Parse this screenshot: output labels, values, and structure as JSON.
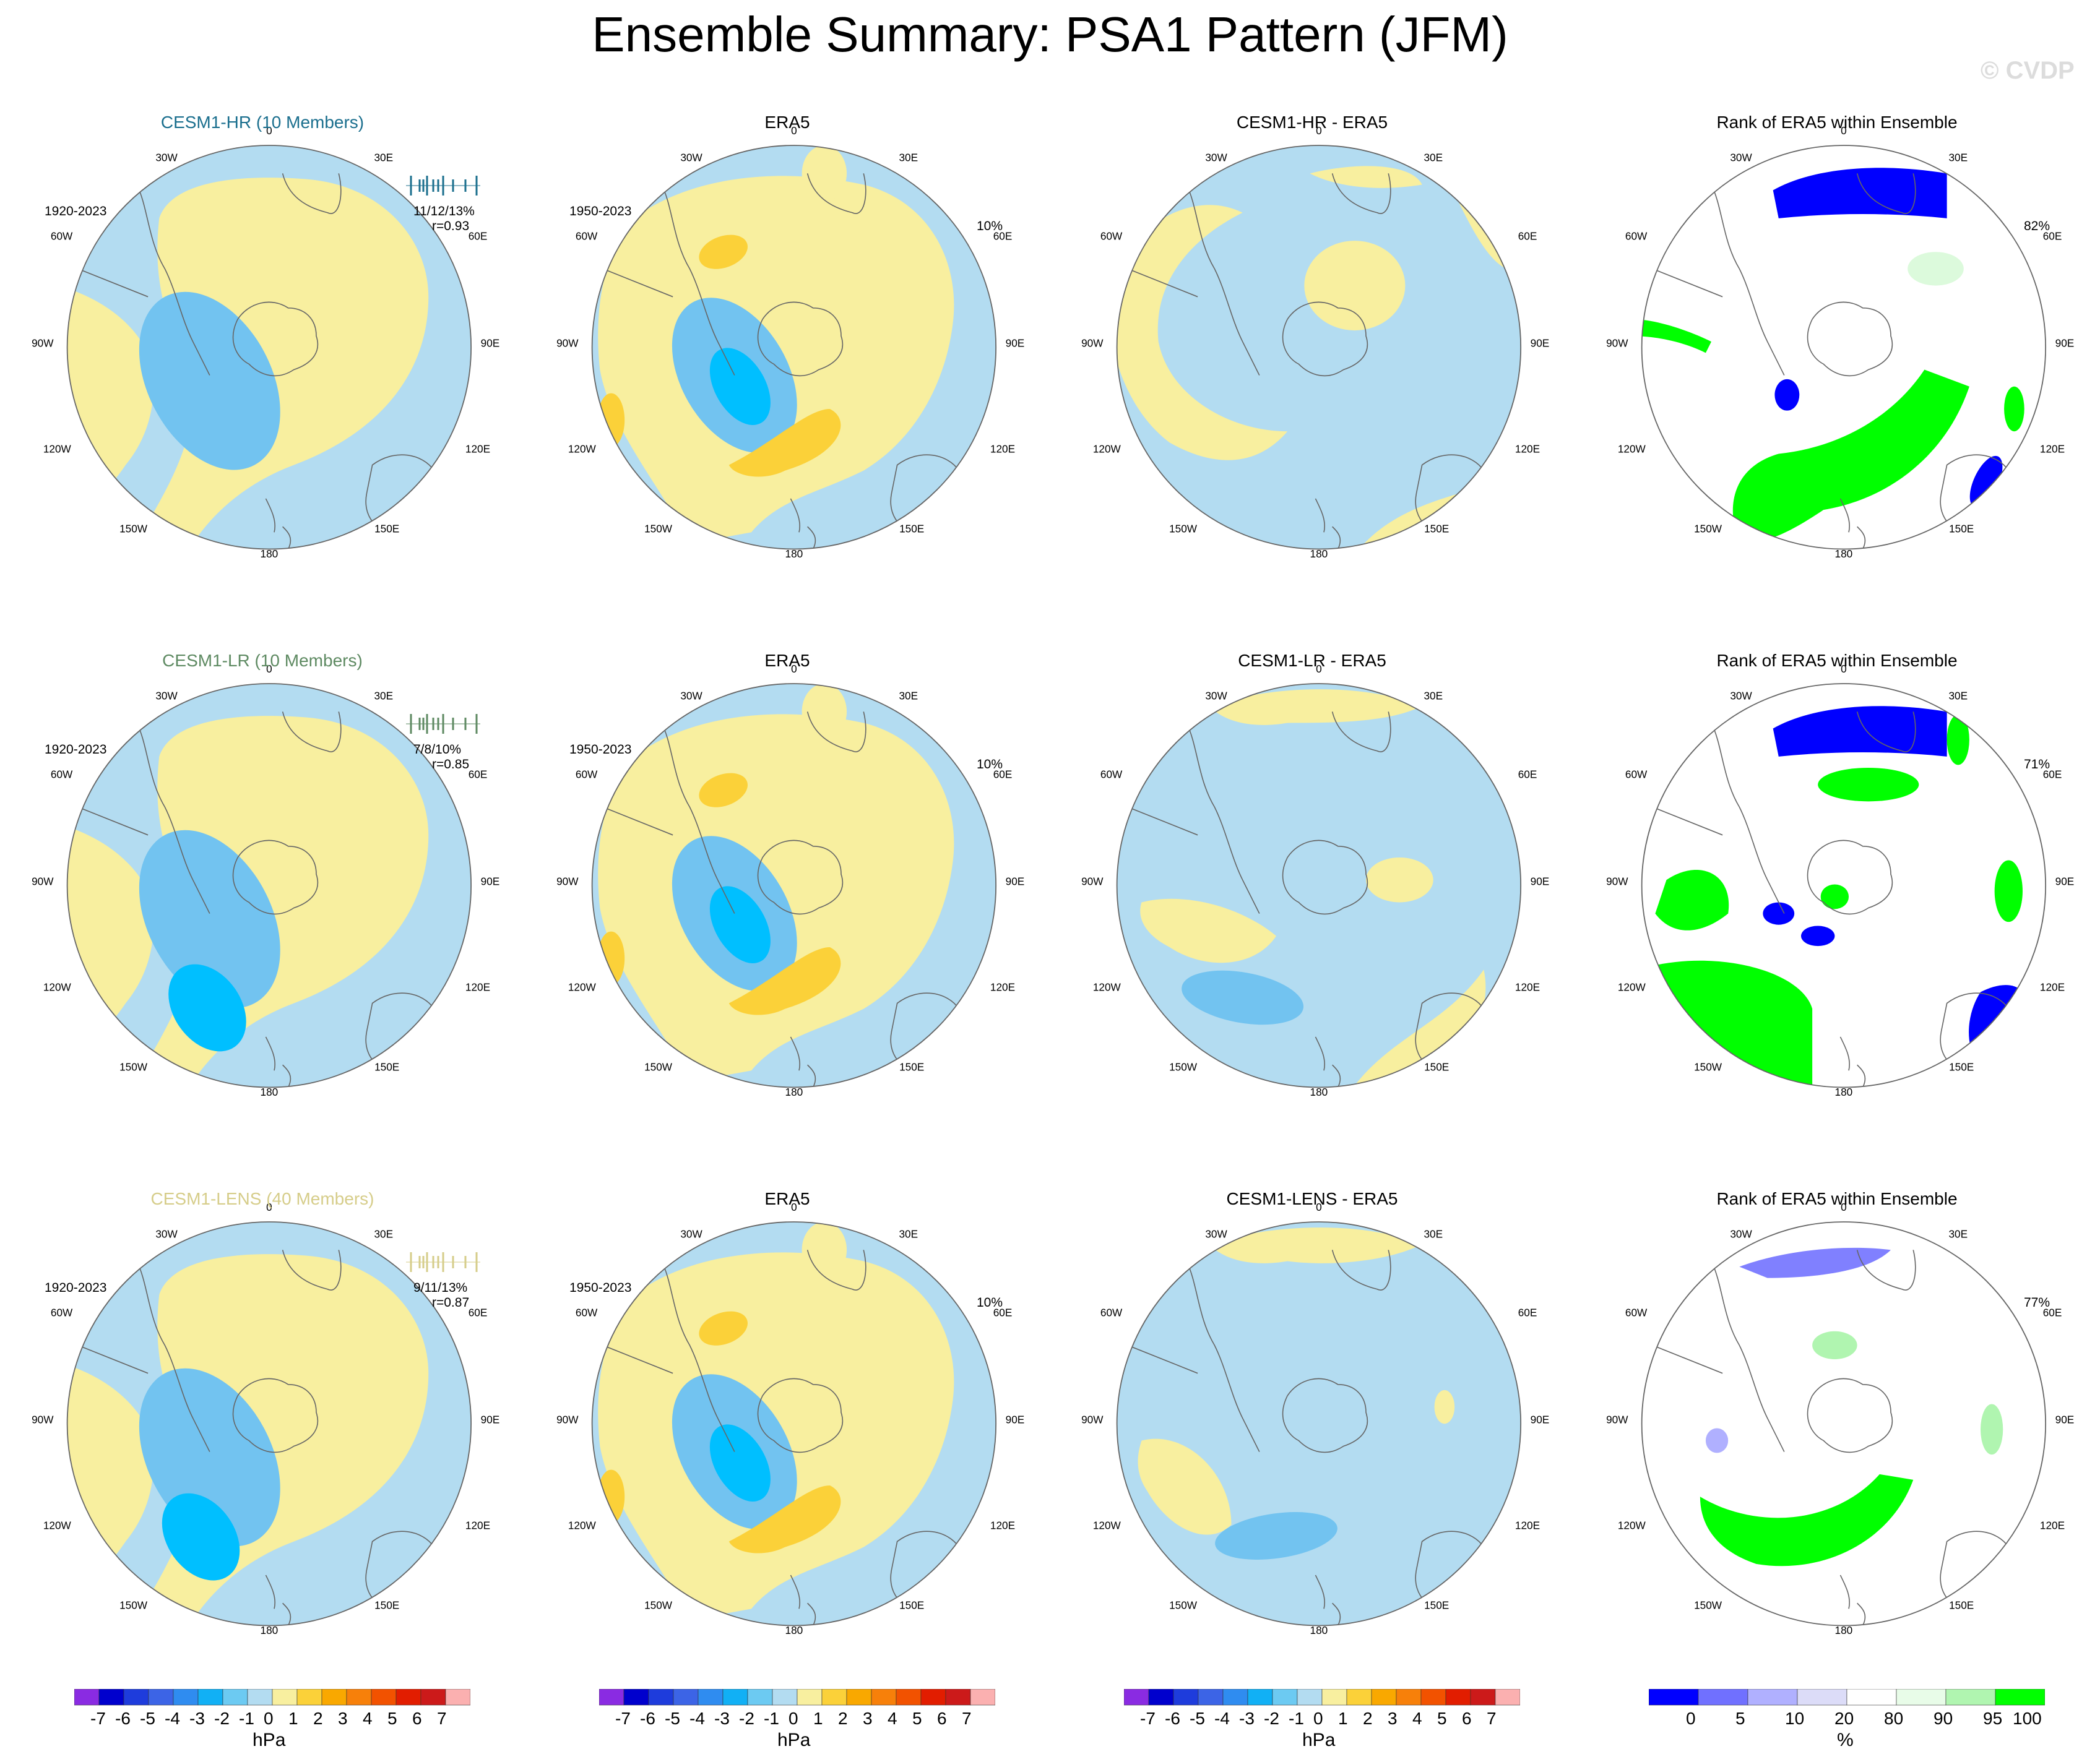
{
  "title": "Ensemble Summary: PSA1 Pattern (JFM)",
  "watermark": "© CVDP",
  "lon_labels": {
    "top": "0",
    "bottom": "180",
    "n30w": "30W",
    "n30e": "30E",
    "n60w": "60W",
    "n60e": "60E",
    "w90": "90W",
    "e90": "90E",
    "s120w": "120W",
    "s120e": "120E",
    "s150w": "150W",
    "s150e": "150E"
  },
  "colors": {
    "pos_light": "#f8ef9f",
    "pos_mid": "#fbd139",
    "neg_light": "#b3dcf1",
    "neg_mid": "#72c3f0",
    "neg_strong": "#00bfff",
    "rank_blue": "#0000ff",
    "rank_green": "#00ff00",
    "rank_lightgreen": "#dcfadc"
  },
  "rows": [
    {
      "model": {
        "title": "CESM1-HR (10 Members)",
        "title_color": "#1b6f8e",
        "years": "1920-2023",
        "stat1": "11/12/13%",
        "stat2": "r=0.93"
      },
      "obs": {
        "title": "ERA5",
        "years": "1950-2023",
        "pct": "10%"
      },
      "diff": {
        "title": "CESM1-HR - ERA5"
      },
      "rank": {
        "title": "Rank of ERA5 within Ensemble",
        "pct": "82%"
      }
    },
    {
      "model": {
        "title": "CESM1-LR (10 Members)",
        "title_color": "#5e8a62",
        "years": "1920-2023",
        "stat1": "7/8/10%",
        "stat2": "r=0.85"
      },
      "obs": {
        "title": "ERA5",
        "years": "1950-2023",
        "pct": "10%"
      },
      "diff": {
        "title": "CESM1-LR - ERA5"
      },
      "rank": {
        "title": "Rank of ERA5 within Ensemble",
        "pct": "71%"
      }
    },
    {
      "model": {
        "title": "CESM1-LENS (40 Members)",
        "title_color": "#d6cd8a",
        "years": "1920-2023",
        "stat1": "9/11/13%",
        "stat2": "r=0.87"
      },
      "obs": {
        "title": "ERA5",
        "years": "1950-2023",
        "pct": "10%"
      },
      "diff": {
        "title": "CESM1-LENS - ERA5"
      },
      "rank": {
        "title": "Rank of ERA5 within Ensemble",
        "pct": "77%"
      }
    }
  ],
  "colorbar_hpa": {
    "ticks": [
      "-7",
      "-6",
      "-5",
      "-4",
      "-3",
      "-2",
      "-1",
      "0",
      "1",
      "2",
      "3",
      "4",
      "5",
      "6",
      "7"
    ],
    "colors": [
      "#8a2be2",
      "#0000cd",
      "#1e3cdc",
      "#3c64e6",
      "#2f8cf0",
      "#11b0f5",
      "#6ccaf2",
      "#b3dcf1",
      "#f8ef9f",
      "#fbd139",
      "#f9a800",
      "#f7800a",
      "#f25200",
      "#e21d00",
      "#cc1a1a",
      "#fbb0b0"
    ],
    "unit": "hPa"
  },
  "colorbar_pct": {
    "ticks": [
      "0",
      "5",
      "10",
      "20",
      "80",
      "90",
      "95",
      "100"
    ],
    "colors": [
      "#0000ff",
      "#7070ff",
      "#b0b0ff",
      "#dcdcf8",
      "#ffffff",
      "#e8fce8",
      "#b0f5b0",
      "#00ff00"
    ],
    "unit": "%"
  }
}
